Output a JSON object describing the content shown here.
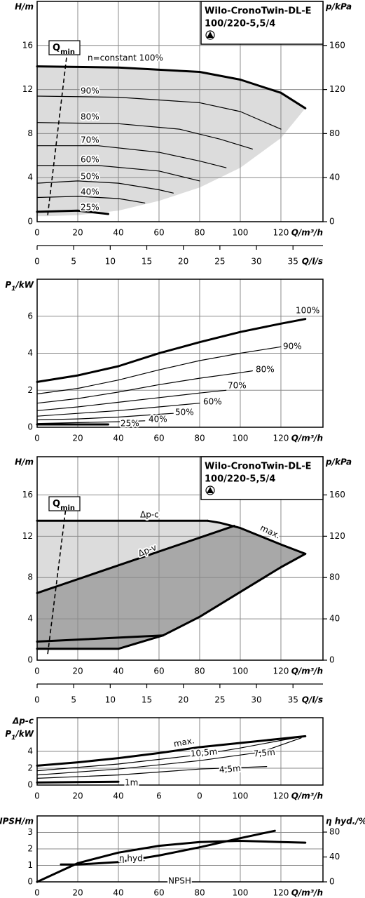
{
  "chart_data": [
    {
      "type": "line",
      "title_lines": [
        "Wilo-CronoTwin-DL-E",
        "100/220-5,5/4"
      ],
      "y_label": "H/m",
      "y2_label": "p/kPa",
      "x_label": "Q/m³/h",
      "xlim": [
        0,
        140.7
      ],
      "xticks": [
        0,
        20,
        40,
        60,
        80,
        100,
        120
      ],
      "ylim": [
        0,
        20
      ],
      "yticks": [
        0,
        4,
        8,
        12,
        16
      ],
      "y2lim": [
        0,
        200
      ],
      "y2ticks": [
        0,
        40,
        80,
        120,
        160
      ],
      "grid": true,
      "areas": [
        {
          "color": "#dcdcdc",
          "x": [
            0,
            40,
            80,
            100,
            120,
            132,
            120,
            100,
            80,
            60,
            40,
            20,
            5,
            0
          ],
          "values": [
            14.1,
            14.0,
            13.6,
            12.9,
            11.7,
            10.3,
            7.6,
            4.9,
            3.1,
            1.9,
            1.0,
            0.6,
            0.5,
            0.5
          ]
        }
      ],
      "series": [
        {
          "name": "n=constant 100%",
          "color": "#000000",
          "line_width": 3,
          "x": [
            0,
            40,
            80,
            100,
            120,
            132
          ],
          "values": [
            14.1,
            14.0,
            13.6,
            12.9,
            11.7,
            10.3
          ]
        },
        {
          "name": "90%",
          "color": "#000000",
          "line_width": 1.2,
          "x": [
            0,
            40,
            80,
            100,
            120
          ],
          "values": [
            11.4,
            11.3,
            10.8,
            10.0,
            8.4
          ]
        },
        {
          "name": "80%",
          "color": "#000000",
          "line_width": 1.2,
          "x": [
            0,
            40,
            70,
            90,
            106
          ],
          "values": [
            9.0,
            8.9,
            8.4,
            7.5,
            6.6
          ]
        },
        {
          "name": "70%",
          "color": "#000000",
          "line_width": 1.2,
          "x": [
            0,
            30,
            60,
            80,
            93
          ],
          "values": [
            6.9,
            6.9,
            6.3,
            5.5,
            4.9
          ]
        },
        {
          "name": "60%",
          "color": "#000000",
          "line_width": 1.2,
          "x": [
            0,
            30,
            60,
            80
          ],
          "values": [
            5.1,
            5.1,
            4.6,
            3.7
          ]
        },
        {
          "name": "50%",
          "color": "#000000",
          "line_width": 1.2,
          "x": [
            0,
            20,
            40,
            60,
            67
          ],
          "values": [
            3.5,
            3.7,
            3.5,
            2.9,
            2.6
          ]
        },
        {
          "name": "40%",
          "color": "#000000",
          "line_width": 1.2,
          "x": [
            0,
            20,
            40,
            53
          ],
          "values": [
            2.2,
            2.3,
            2.1,
            1.7
          ]
        },
        {
          "name": "25%",
          "color": "#000000",
          "line_width": 3,
          "x": [
            0,
            20,
            35
          ],
          "values": [
            0.9,
            1.0,
            0.7
          ]
        }
      ],
      "qmin": {
        "label": "Q",
        "sub": "min",
        "x": [
          5.2,
          14.8
        ],
        "values": [
          0.6,
          15.4
        ]
      }
    },
    {
      "type": "axis",
      "x_label": "Q/l/s",
      "xlim": [
        0,
        39.1
      ],
      "xticks": [
        0,
        5,
        10,
        15,
        20,
        25,
        30,
        35
      ]
    },
    {
      "type": "line",
      "y_label": [
        {
          "text": "P"
        },
        {
          "text": "1",
          "sub": true
        },
        {
          "text": "/kW"
        }
      ],
      "x_label": "Q/m³/h",
      "xlim": [
        0,
        140.7
      ],
      "xticks": [
        0,
        20,
        40,
        60,
        80,
        100,
        120
      ],
      "ylim": [
        0,
        8
      ],
      "yticks": [
        0,
        2,
        4,
        6
      ],
      "grid": true,
      "series": [
        {
          "name": "100%",
          "color": "#000000",
          "line_width": 3,
          "x": [
            0,
            20,
            40,
            60,
            80,
            100,
            120,
            132
          ],
          "values": [
            2.45,
            2.8,
            3.3,
            4.0,
            4.6,
            5.15,
            5.6,
            5.85
          ]
        },
        {
          "name": "90%",
          "color": "#000000",
          "line_width": 1.2,
          "x": [
            0,
            20,
            40,
            60,
            80,
            100,
            120
          ],
          "values": [
            1.8,
            2.1,
            2.55,
            3.1,
            3.6,
            4.0,
            4.35
          ]
        },
        {
          "name": "80%",
          "color": "#000000",
          "line_width": 1.2,
          "x": [
            0,
            20,
            40,
            60,
            80,
            100,
            106
          ],
          "values": [
            1.3,
            1.55,
            1.9,
            2.3,
            2.65,
            2.95,
            3.05
          ]
        },
        {
          "name": "70%",
          "color": "#000000",
          "line_width": 1.2,
          "x": [
            0,
            20,
            40,
            60,
            80,
            93
          ],
          "values": [
            0.9,
            1.1,
            1.35,
            1.6,
            1.85,
            2.0
          ]
        },
        {
          "name": "60%",
          "color": "#000000",
          "line_width": 1.2,
          "x": [
            0,
            20,
            40,
            60,
            80
          ],
          "values": [
            0.6,
            0.75,
            0.9,
            1.1,
            1.3
          ]
        },
        {
          "name": "50%",
          "color": "#000000",
          "line_width": 1.2,
          "x": [
            0,
            20,
            40,
            60,
            67
          ],
          "values": [
            0.4,
            0.45,
            0.55,
            0.7,
            0.75
          ]
        },
        {
          "name": "40%",
          "color": "#000000",
          "line_width": 1.2,
          "x": [
            0,
            20,
            40,
            53
          ],
          "values": [
            0.2,
            0.25,
            0.3,
            0.35
          ]
        },
        {
          "name": "25%",
          "color": "#000000",
          "line_width": 3,
          "x": [
            0,
            20,
            35
          ],
          "values": [
            0.15,
            0.15,
            0.15
          ]
        }
      ]
    },
    {
      "type": "line",
      "title_lines": [
        "Wilo-CronoTwin-DL-E",
        "100/220-5,5/4"
      ],
      "y_label": "H/m",
      "y2_label": "p/kPa",
      "x_label": "Q/m³/h",
      "xlim": [
        0,
        140.7
      ],
      "xticks": [
        0,
        20,
        40,
        60,
        80,
        100,
        120
      ],
      "ylim": [
        0,
        19.7
      ],
      "yticks": [
        0,
        4,
        8,
        12,
        16
      ],
      "y2lim": [
        0,
        197
      ],
      "y2ticks": [
        0,
        40,
        80,
        120,
        160
      ],
      "grid": true,
      "areas": [
        {
          "color": "#a8a8a8",
          "x": [
            0,
            84,
            90,
            100,
            110,
            120,
            132,
            120,
            100,
            80,
            62,
            40,
            0
          ],
          "values": [
            13.5,
            13.5,
            13.3,
            12.8,
            12.0,
            11.2,
            10.3,
            9.0,
            6.6,
            4.2,
            2.4,
            1.1,
            1.1
          ]
        },
        {
          "color": "#dcdcdc",
          "x": [
            0,
            84,
            90,
            97,
            0
          ],
          "values": [
            13.5,
            13.5,
            13.3,
            13.0,
            6.5
          ]
        }
      ],
      "series": [
        {
          "name": "Δp-c",
          "color": "#000000",
          "line_width": 3,
          "x": [
            0,
            84
          ],
          "values": [
            13.5,
            13.5
          ]
        },
        {
          "name": "max.",
          "color": "#000000",
          "line_width": 3,
          "x": [
            84,
            90,
            100,
            110,
            120,
            132
          ],
          "values": [
            13.5,
            13.3,
            12.8,
            12.0,
            11.2,
            10.3
          ]
        },
        {
          "name": "Δp-v",
          "color": "#000000",
          "line_width": 3,
          "x": [
            0,
            97
          ],
          "values": [
            6.5,
            13.0
          ]
        },
        {
          "color": "#000000",
          "line_width": 3,
          "x": [
            0,
            40,
            62,
            80,
            100,
            120,
            132
          ],
          "values": [
            1.1,
            1.1,
            2.4,
            4.2,
            6.6,
            9.0,
            10.3
          ]
        },
        {
          "color": "#000000",
          "line_width": 3,
          "x": [
            0,
            62
          ],
          "values": [
            1.8,
            2.4
          ]
        }
      ],
      "qmin": {
        "label": "Q",
        "sub": "min",
        "x": [
          5.2,
          14.5
        ],
        "values": [
          0.6,
          15.3
        ]
      }
    },
    {
      "type": "axis",
      "x_label": "Q/l/s",
      "xlim": [
        0,
        39.1
      ],
      "xticks": [
        0,
        5,
        10,
        15,
        20,
        25,
        30,
        35
      ]
    },
    {
      "type": "line",
      "y_label_top": "Δp-c",
      "y_label": [
        {
          "text": "P"
        },
        {
          "text": "1",
          "sub": true
        },
        {
          "text": "/kW"
        }
      ],
      "x_label": "Q/m³/h",
      "xlim": [
        0,
        140.7
      ],
      "xticks": [
        0,
        20,
        40,
        {
          "value": 60,
          "label": "6"
        },
        {
          "value": 80,
          "label": "0"
        },
        100,
        120
      ],
      "ylim": [
        0,
        8
      ],
      "yticks": [
        0,
        2,
        4
      ],
      "grid": true,
      "series": [
        {
          "name": "max.",
          "color": "#000000",
          "line_width": 3,
          "x": [
            0,
            20,
            40,
            60,
            80,
            100,
            120,
            132
          ],
          "values": [
            2.3,
            2.7,
            3.2,
            3.8,
            4.5,
            5.0,
            5.5,
            5.8
          ]
        },
        {
          "name": "10,5m",
          "color": "#000000",
          "line_width": 1.2,
          "x": [
            0,
            40,
            80,
            100,
            120,
            132
          ],
          "values": [
            1.7,
            2.5,
            3.6,
            4.4,
            5.3,
            5.8
          ]
        },
        {
          "name": "7,5m",
          "color": "#000000",
          "line_width": 1.2,
          "x": [
            0,
            40,
            80,
            110,
            130
          ],
          "values": [
            1.2,
            1.9,
            2.9,
            3.9,
            5.6
          ]
        },
        {
          "name": "4,5m",
          "color": "#000000",
          "line_width": 1.2,
          "x": [
            0,
            40,
            80,
            113
          ],
          "values": [
            0.8,
            1.2,
            1.9,
            2.2
          ]
        },
        {
          "name": "1m",
          "color": "#000000",
          "line_width": 3,
          "x": [
            0,
            20,
            40
          ],
          "values": [
            0.3,
            0.35,
            0.4
          ]
        }
      ]
    },
    {
      "type": "line",
      "y_label": "NPSH/m",
      "y2_label": "η hyd./%",
      "x_label": "Q/m³/h",
      "xlim": [
        0,
        140.7
      ],
      "xticks": [
        0,
        20,
        40,
        60,
        80,
        100,
        120
      ],
      "ylim": [
        0,
        4
      ],
      "yticks": [
        0,
        1,
        2,
        3
      ],
      "y2lim": [
        0,
        106
      ],
      "y2ticks": [
        0,
        40,
        80
      ],
      "grid": true,
      "series": [
        {
          "name": "η hyd.",
          "axis": "y2",
          "color": "#000000",
          "line_width": 3,
          "x": [
            0,
            20,
            40,
            60,
            80,
            100,
            120,
            132
          ],
          "values": [
            0,
            30,
            47,
            58,
            64,
            66,
            64,
            63
          ]
        },
        {
          "name": "NPSH",
          "color": "#000000",
          "line_width": 3,
          "x": [
            11.7,
            20,
            40,
            60,
            80,
            100,
            117
          ],
          "values": [
            1.05,
            1.05,
            1.2,
            1.6,
            2.1,
            2.65,
            3.1
          ]
        }
      ]
    }
  ]
}
